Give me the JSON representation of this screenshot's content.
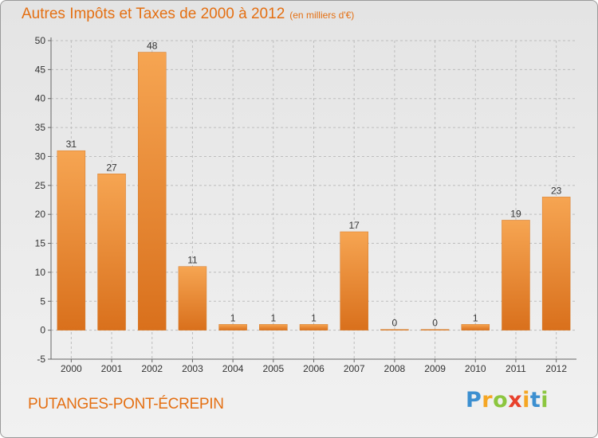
{
  "chart_data": {
    "type": "bar",
    "title": "Autres Impôts et Taxes de 2000 à 2012",
    "subtitle": "(en milliers d'€)",
    "categories": [
      "2000",
      "2001",
      "2002",
      "2003",
      "2004",
      "2005",
      "2006",
      "2007",
      "2008",
      "2009",
      "2010",
      "2011",
      "2012"
    ],
    "values": [
      31,
      27,
      48,
      11,
      1,
      1,
      1,
      17,
      0,
      0,
      1,
      19,
      23
    ],
    "ylim": [
      -5,
      50
    ],
    "yticks": [
      -5,
      0,
      5,
      10,
      15,
      20,
      25,
      30,
      35,
      40,
      45,
      50
    ],
    "grid": true,
    "bar_color": "#ee8a35"
  },
  "footer": {
    "place": "PUTANGES-PONT-ÉCREPIN",
    "logo": [
      "P",
      "r",
      "o",
      "x",
      "i",
      "t",
      "i"
    ]
  }
}
